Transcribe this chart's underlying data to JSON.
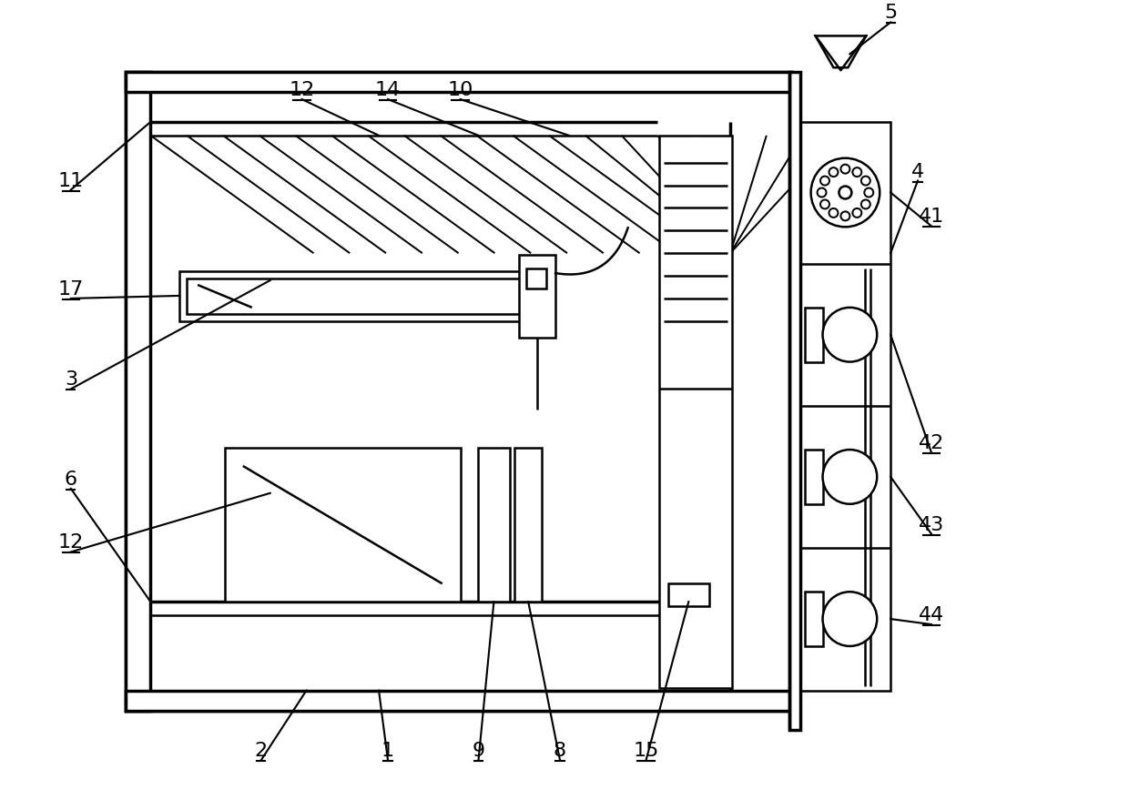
{
  "bg_color": "#ffffff",
  "line_color": "#000000",
  "lw": 1.8,
  "tlw": 2.5,
  "fs": 16,
  "fig_w": 12.4,
  "fig_h": 8.9,
  "dpi": 100
}
